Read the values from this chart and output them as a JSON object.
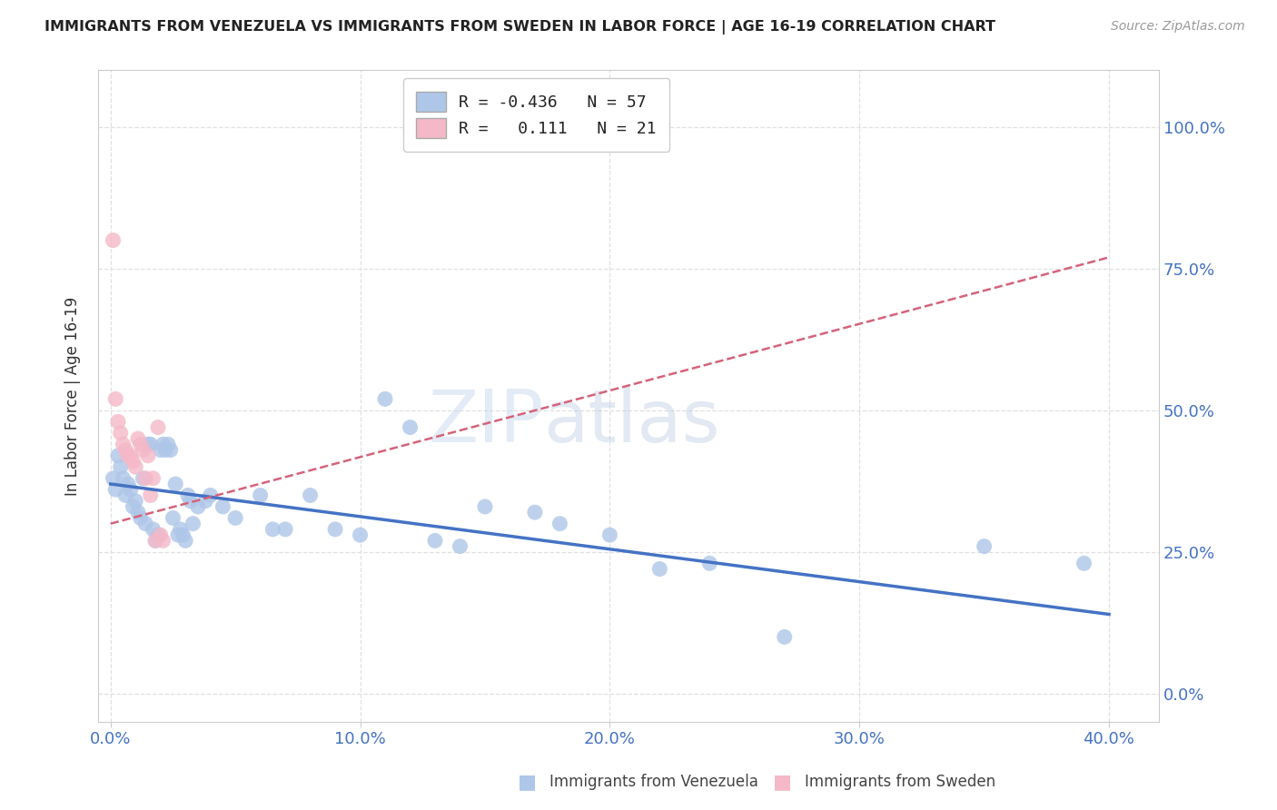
{
  "title": "IMMIGRANTS FROM VENEZUELA VS IMMIGRANTS FROM SWEDEN IN LABOR FORCE | AGE 16-19 CORRELATION CHART",
  "source": "Source: ZipAtlas.com",
  "ylabel": "In Labor Force | Age 16-19",
  "xlabel_ticks": [
    "0.0%",
    "",
    "",
    "",
    "",
    "10.0%",
    "",
    "",
    "",
    "",
    "20.0%",
    "",
    "",
    "",
    "",
    "30.0%",
    "",
    "",
    "",
    "",
    "40.0%"
  ],
  "xlabel_vals": [
    0.0,
    0.02,
    0.04,
    0.06,
    0.08,
    0.1,
    0.12,
    0.14,
    0.16,
    0.18,
    0.2,
    0.22,
    0.24,
    0.26,
    0.28,
    0.3,
    0.32,
    0.34,
    0.36,
    0.38,
    0.4
  ],
  "xlabel_major": [
    0.0,
    0.1,
    0.2,
    0.3,
    0.4
  ],
  "xlabel_major_labels": [
    "0.0%",
    "10.0%",
    "20.0%",
    "30.0%",
    "40.0%"
  ],
  "ylabel_ticks": [
    "0.0%",
    "25.0%",
    "50.0%",
    "75.0%",
    "100.0%"
  ],
  "ylabel_vals": [
    0.0,
    0.25,
    0.5,
    0.75,
    1.0
  ],
  "xlim": [
    -0.005,
    0.42
  ],
  "ylim": [
    -0.05,
    1.1
  ],
  "venezuela_R": -0.436,
  "venezuela_N": 57,
  "sweden_R": 0.111,
  "sweden_N": 21,
  "venezuela_color": "#aec6e8",
  "sweden_color": "#f4b8c8",
  "venezuela_line_color": "#4472c4",
  "sweden_line_color": "#d4637a",
  "watermark_color": "#d0dff0",
  "background_color": "#ffffff",
  "grid_color": "#e0e0e0",
  "tick_label_color": "#4472c4",
  "venezuela_points": [
    [
      0.001,
      0.38
    ],
    [
      0.002,
      0.36
    ],
    [
      0.003,
      0.42
    ],
    [
      0.004,
      0.4
    ],
    [
      0.005,
      0.38
    ],
    [
      0.006,
      0.35
    ],
    [
      0.007,
      0.37
    ],
    [
      0.008,
      0.36
    ],
    [
      0.009,
      0.33
    ],
    [
      0.01,
      0.34
    ],
    [
      0.011,
      0.32
    ],
    [
      0.012,
      0.31
    ],
    [
      0.013,
      0.38
    ],
    [
      0.014,
      0.3
    ],
    [
      0.015,
      0.44
    ],
    [
      0.016,
      0.44
    ],
    [
      0.017,
      0.29
    ],
    [
      0.018,
      0.27
    ],
    [
      0.019,
      0.28
    ],
    [
      0.02,
      0.43
    ],
    [
      0.021,
      0.44
    ],
    [
      0.022,
      0.43
    ],
    [
      0.023,
      0.44
    ],
    [
      0.024,
      0.43
    ],
    [
      0.025,
      0.31
    ],
    [
      0.026,
      0.37
    ],
    [
      0.027,
      0.28
    ],
    [
      0.028,
      0.29
    ],
    [
      0.029,
      0.28
    ],
    [
      0.03,
      0.27
    ],
    [
      0.031,
      0.35
    ],
    [
      0.032,
      0.34
    ],
    [
      0.033,
      0.3
    ],
    [
      0.035,
      0.33
    ],
    [
      0.038,
      0.34
    ],
    [
      0.04,
      0.35
    ],
    [
      0.045,
      0.33
    ],
    [
      0.05,
      0.31
    ],
    [
      0.06,
      0.35
    ],
    [
      0.065,
      0.29
    ],
    [
      0.07,
      0.29
    ],
    [
      0.08,
      0.35
    ],
    [
      0.09,
      0.29
    ],
    [
      0.1,
      0.28
    ],
    [
      0.11,
      0.52
    ],
    [
      0.12,
      0.47
    ],
    [
      0.13,
      0.27
    ],
    [
      0.14,
      0.26
    ],
    [
      0.15,
      0.33
    ],
    [
      0.17,
      0.32
    ],
    [
      0.18,
      0.3
    ],
    [
      0.2,
      0.28
    ],
    [
      0.22,
      0.22
    ],
    [
      0.24,
      0.23
    ],
    [
      0.27,
      0.1
    ],
    [
      0.35,
      0.26
    ],
    [
      0.39,
      0.23
    ]
  ],
  "sweden_points": [
    [
      0.001,
      0.8
    ],
    [
      0.002,
      0.52
    ],
    [
      0.003,
      0.48
    ],
    [
      0.004,
      0.46
    ],
    [
      0.005,
      0.44
    ],
    [
      0.006,
      0.43
    ],
    [
      0.007,
      0.42
    ],
    [
      0.008,
      0.42
    ],
    [
      0.009,
      0.41
    ],
    [
      0.01,
      0.4
    ],
    [
      0.011,
      0.45
    ],
    [
      0.012,
      0.44
    ],
    [
      0.013,
      0.43
    ],
    [
      0.014,
      0.38
    ],
    [
      0.015,
      0.42
    ],
    [
      0.016,
      0.35
    ],
    [
      0.017,
      0.38
    ],
    [
      0.018,
      0.27
    ],
    [
      0.019,
      0.47
    ],
    [
      0.02,
      0.28
    ],
    [
      0.021,
      0.27
    ]
  ],
  "ven_line_x": [
    0.0,
    0.4
  ],
  "ven_line_y": [
    0.37,
    0.14
  ],
  "swe_line_x": [
    0.0,
    0.4
  ],
  "swe_line_y": [
    0.3,
    0.77
  ],
  "legend_ven_label": "R = -0.436   N = 57",
  "legend_swe_label": "R =   0.111   N = 21",
  "bottom_ven_label": "Immigrants from Venezuela",
  "bottom_swe_label": "Immigrants from Sweden"
}
